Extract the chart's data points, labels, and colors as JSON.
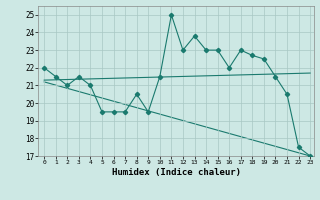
{
  "xlabel": "Humidex (Indice chaleur)",
  "bg_color": "#cde8e4",
  "line_color": "#1a7a6e",
  "xlim": [
    -0.5,
    23.3
  ],
  "ylim": [
    17,
    25.5
  ],
  "yticks": [
    17,
    18,
    19,
    20,
    21,
    22,
    23,
    24,
    25
  ],
  "xticks": [
    0,
    1,
    2,
    3,
    4,
    5,
    6,
    7,
    8,
    9,
    10,
    11,
    12,
    13,
    14,
    15,
    16,
    17,
    18,
    19,
    20,
    21,
    22,
    23
  ],
  "series1_x": [
    0,
    1,
    2,
    3,
    4,
    5,
    6,
    7,
    8,
    9,
    10,
    11,
    12,
    13,
    14,
    15,
    16,
    17,
    18,
    19,
    20,
    21,
    22,
    23
  ],
  "series1_y": [
    22.0,
    21.5,
    21.0,
    21.5,
    21.0,
    19.5,
    19.5,
    19.5,
    20.5,
    19.5,
    21.5,
    25.0,
    23.0,
    23.8,
    23.0,
    23.0,
    22.0,
    23.0,
    22.7,
    22.5,
    21.5,
    20.5,
    17.5,
    17.0
  ],
  "series2_x": [
    0,
    23
  ],
  "series2_y": [
    21.3,
    21.7
  ],
  "series3_x": [
    0,
    23
  ],
  "series3_y": [
    21.2,
    17.0
  ]
}
